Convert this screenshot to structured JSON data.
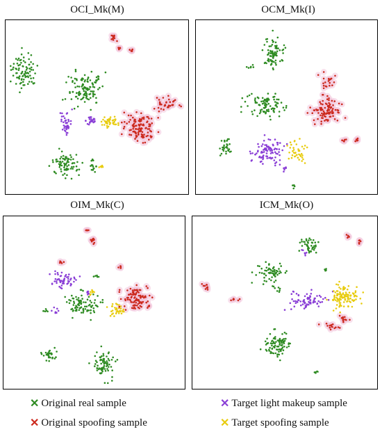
{
  "colors": {
    "real": "#2e8b22",
    "spoof": "#cc2a1e",
    "makeup": "#8a3fd6",
    "target_spoof": "#e8cc10",
    "halo": "#f3c7dc"
  },
  "legend": [
    {
      "marker": "✕",
      "label": "Original real sample",
      "series": "real"
    },
    {
      "marker": "✕",
      "label": "Original spoofing sample",
      "series": "spoof"
    },
    {
      "marker": "✕",
      "label": "Target light makeup sample",
      "series": "makeup"
    },
    {
      "marker": "✕",
      "label": "Target spoofing sample",
      "series": "target_spoof"
    }
  ],
  "chart_data": [
    {
      "type": "scatter",
      "title": "OCI_Mk(M)",
      "clusters": [
        {
          "series": "real",
          "cx": 0.1,
          "cy": 0.29,
          "rx": 0.07,
          "ry": 0.1,
          "n": 90
        },
        {
          "series": "real",
          "cx": 0.43,
          "cy": 0.4,
          "rx": 0.09,
          "ry": 0.1,
          "n": 110
        },
        {
          "series": "real",
          "cx": 0.33,
          "cy": 0.83,
          "rx": 0.07,
          "ry": 0.07,
          "n": 80
        },
        {
          "series": "real",
          "cx": 0.48,
          "cy": 0.84,
          "rx": 0.02,
          "ry": 0.03,
          "n": 14
        },
        {
          "series": "real",
          "cx": 0.5,
          "cy": 0.34,
          "rx": 0.02,
          "ry": 0.02,
          "n": 8
        },
        {
          "series": "makeup",
          "cx": 0.33,
          "cy": 0.59,
          "rx": 0.03,
          "ry": 0.06,
          "n": 40
        },
        {
          "series": "makeup",
          "cx": 0.47,
          "cy": 0.58,
          "rx": 0.03,
          "ry": 0.04,
          "n": 25
        },
        {
          "series": "target_spoof",
          "cx": 0.57,
          "cy": 0.58,
          "rx": 0.06,
          "ry": 0.03,
          "n": 40
        },
        {
          "series": "target_spoof",
          "cx": 0.52,
          "cy": 0.84,
          "rx": 0.02,
          "ry": 0.02,
          "n": 6
        },
        {
          "series": "spoof",
          "cx": 0.74,
          "cy": 0.62,
          "rx": 0.08,
          "ry": 0.07,
          "n": 120
        },
        {
          "series": "spoof",
          "cx": 0.87,
          "cy": 0.48,
          "rx": 0.07,
          "ry": 0.04,
          "n": 35
        },
        {
          "series": "spoof",
          "cx": 0.59,
          "cy": 0.1,
          "rx": 0.02,
          "ry": 0.02,
          "n": 12
        },
        {
          "series": "spoof",
          "cx": 0.62,
          "cy": 0.16,
          "rx": 0.01,
          "ry": 0.01,
          "n": 6
        },
        {
          "series": "spoof",
          "cx": 0.69,
          "cy": 0.17,
          "rx": 0.01,
          "ry": 0.01,
          "n": 6
        }
      ]
    },
    {
      "type": "scatter",
      "title": "OCM_Mk(I)",
      "clusters": [
        {
          "series": "real",
          "cx": 0.43,
          "cy": 0.19,
          "rx": 0.06,
          "ry": 0.1,
          "n": 85
        },
        {
          "series": "real",
          "cx": 0.38,
          "cy": 0.49,
          "rx": 0.1,
          "ry": 0.07,
          "n": 95
        },
        {
          "series": "real",
          "cx": 0.16,
          "cy": 0.73,
          "rx": 0.03,
          "ry": 0.05,
          "n": 30
        },
        {
          "series": "real",
          "cx": 0.54,
          "cy": 0.95,
          "rx": 0.01,
          "ry": 0.02,
          "n": 5
        },
        {
          "series": "real",
          "cx": 0.3,
          "cy": 0.27,
          "rx": 0.02,
          "ry": 0.02,
          "n": 6
        },
        {
          "series": "makeup",
          "cx": 0.4,
          "cy": 0.75,
          "rx": 0.09,
          "ry": 0.08,
          "n": 95
        },
        {
          "series": "makeup",
          "cx": 0.49,
          "cy": 0.86,
          "rx": 0.01,
          "ry": 0.02,
          "n": 6
        },
        {
          "series": "target_spoof",
          "cx": 0.56,
          "cy": 0.76,
          "rx": 0.05,
          "ry": 0.06,
          "n": 40
        },
        {
          "series": "spoof",
          "cx": 0.72,
          "cy": 0.52,
          "rx": 0.08,
          "ry": 0.07,
          "n": 100
        },
        {
          "series": "spoof",
          "cx": 0.74,
          "cy": 0.35,
          "rx": 0.05,
          "ry": 0.04,
          "n": 20
        },
        {
          "series": "spoof",
          "cx": 0.82,
          "cy": 0.69,
          "rx": 0.01,
          "ry": 0.01,
          "n": 6
        },
        {
          "series": "spoof",
          "cx": 0.89,
          "cy": 0.69,
          "rx": 0.01,
          "ry": 0.01,
          "n": 6
        }
      ]
    },
    {
      "type": "scatter",
      "title": "OIM_Mk(C)",
      "clusters": [
        {
          "series": "makeup",
          "cx": 0.33,
          "cy": 0.37,
          "rx": 0.07,
          "ry": 0.04,
          "n": 55
        },
        {
          "series": "makeup",
          "cx": 0.29,
          "cy": 0.55,
          "rx": 0.02,
          "ry": 0.02,
          "n": 8
        },
        {
          "series": "makeup",
          "cx": 0.47,
          "cy": 0.44,
          "rx": 0.02,
          "ry": 0.02,
          "n": 6
        },
        {
          "series": "real",
          "cx": 0.43,
          "cy": 0.51,
          "rx": 0.09,
          "ry": 0.07,
          "n": 90
        },
        {
          "series": "real",
          "cx": 0.23,
          "cy": 0.55,
          "rx": 0.02,
          "ry": 0.01,
          "n": 6
        },
        {
          "series": "real",
          "cx": 0.26,
          "cy": 0.8,
          "rx": 0.04,
          "ry": 0.03,
          "n": 30
        },
        {
          "series": "real",
          "cx": 0.55,
          "cy": 0.85,
          "rx": 0.06,
          "ry": 0.09,
          "n": 75
        },
        {
          "series": "real",
          "cx": 0.52,
          "cy": 0.35,
          "rx": 0.02,
          "ry": 0.01,
          "n": 5
        },
        {
          "series": "target_spoof",
          "cx": 0.62,
          "cy": 0.54,
          "rx": 0.04,
          "ry": 0.03,
          "n": 35
        },
        {
          "series": "target_spoof",
          "cx": 0.49,
          "cy": 0.44,
          "rx": 0.02,
          "ry": 0.02,
          "n": 8
        },
        {
          "series": "spoof",
          "cx": 0.73,
          "cy": 0.48,
          "rx": 0.07,
          "ry": 0.07,
          "n": 100
        },
        {
          "series": "spoof",
          "cx": 0.46,
          "cy": 0.08,
          "rx": 0.01,
          "ry": 0.02,
          "n": 6
        },
        {
          "series": "spoof",
          "cx": 0.49,
          "cy": 0.14,
          "rx": 0.02,
          "ry": 0.02,
          "n": 10
        },
        {
          "series": "spoof",
          "cx": 0.32,
          "cy": 0.27,
          "rx": 0.01,
          "ry": 0.01,
          "n": 5
        },
        {
          "series": "spoof",
          "cx": 0.64,
          "cy": 0.29,
          "rx": 0.01,
          "ry": 0.01,
          "n": 5
        }
      ]
    },
    {
      "type": "scatter",
      "title": "ICM_Mk(O)",
      "clusters": [
        {
          "series": "real",
          "cx": 0.63,
          "cy": 0.16,
          "rx": 0.04,
          "ry": 0.05,
          "n": 45
        },
        {
          "series": "real",
          "cx": 0.42,
          "cy": 0.33,
          "rx": 0.08,
          "ry": 0.06,
          "n": 60
        },
        {
          "series": "real",
          "cx": 0.46,
          "cy": 0.42,
          "rx": 0.02,
          "ry": 0.02,
          "n": 8
        },
        {
          "series": "real",
          "cx": 0.46,
          "cy": 0.75,
          "rx": 0.07,
          "ry": 0.08,
          "n": 90
        },
        {
          "series": "real",
          "cx": 0.72,
          "cy": 0.31,
          "rx": 0.01,
          "ry": 0.01,
          "n": 5
        },
        {
          "series": "real",
          "cx": 0.67,
          "cy": 0.9,
          "rx": 0.01,
          "ry": 0.01,
          "n": 5
        },
        {
          "series": "makeup",
          "cx": 0.63,
          "cy": 0.49,
          "rx": 0.1,
          "ry": 0.05,
          "n": 75
        },
        {
          "series": "makeup",
          "cx": 0.61,
          "cy": 0.21,
          "rx": 0.02,
          "ry": 0.02,
          "n": 6
        },
        {
          "series": "target_spoof",
          "cx": 0.82,
          "cy": 0.47,
          "rx": 0.08,
          "ry": 0.07,
          "n": 110
        },
        {
          "series": "spoof",
          "cx": 0.82,
          "cy": 0.6,
          "rx": 0.03,
          "ry": 0.02,
          "n": 12
        },
        {
          "series": "spoof",
          "cx": 0.07,
          "cy": 0.41,
          "rx": 0.02,
          "ry": 0.02,
          "n": 10
        },
        {
          "series": "spoof",
          "cx": 0.23,
          "cy": 0.48,
          "rx": 0.02,
          "ry": 0.02,
          "n": 6
        },
        {
          "series": "spoof",
          "cx": 0.75,
          "cy": 0.64,
          "rx": 0.05,
          "ry": 0.02,
          "n": 15
        },
        {
          "series": "spoof",
          "cx": 0.84,
          "cy": 0.12,
          "rx": 0.01,
          "ry": 0.01,
          "n": 5
        },
        {
          "series": "spoof",
          "cx": 0.9,
          "cy": 0.15,
          "rx": 0.01,
          "ry": 0.01,
          "n": 6
        }
      ]
    }
  ]
}
